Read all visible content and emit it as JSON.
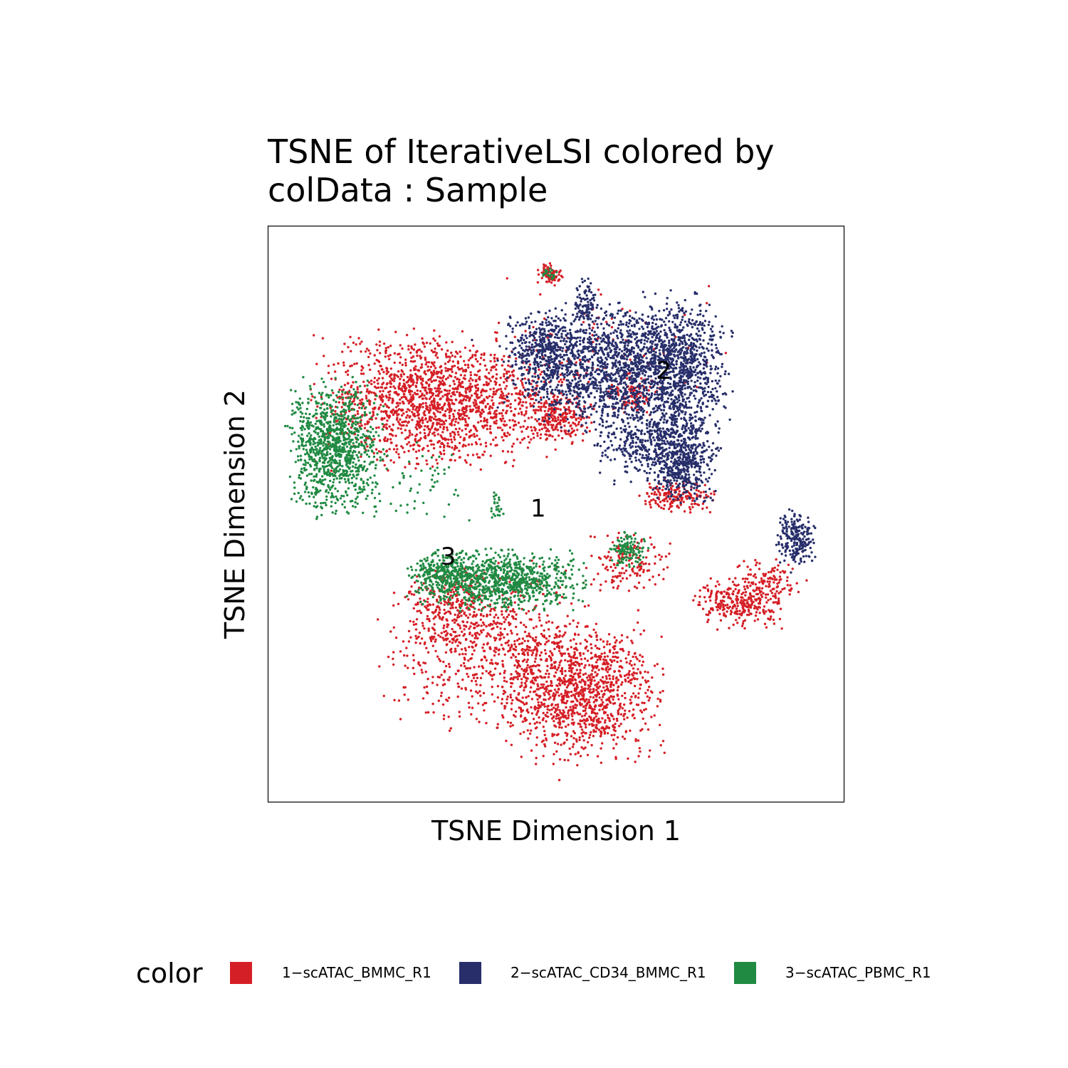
{
  "chart_data": {
    "type": "scatter",
    "title_lines": [
      "TSNE of IterativeLSI  colored by",
      "colData :  Sample"
    ],
    "xlabel": "TSNE Dimension 1",
    "ylabel": "TSNE Dimension 2",
    "xlim": [
      -48,
      48
    ],
    "ylim": [
      -48,
      48
    ],
    "grid": false,
    "legend": {
      "title": "color",
      "position": "bottom",
      "entries": [
        {
          "label": "1−scATAC_BMMC_R1",
          "color": "#D51F26"
        },
        {
          "label": "2−scATAC_CD34_BMMC_R1",
          "color": "#272E6A"
        },
        {
          "label": "3−scATAC_PBMC_R1",
          "color": "#208A42"
        }
      ]
    },
    "cluster_labels": [
      {
        "text": "2",
        "x": 18,
        "y": 24
      },
      {
        "text": "1",
        "x": -3,
        "y": 1
      },
      {
        "text": "3",
        "x": -18,
        "y": -7
      }
    ],
    "series": [
      {
        "name": "1−scATAC_BMMC_R1",
        "color": "#D51F26",
        "clusters": [
          {
            "cx": -22,
            "cy": 19,
            "sx": 8,
            "sy": 5,
            "n": 1400
          },
          {
            "cx": -8,
            "cy": 18,
            "sx": 6,
            "sy": 4,
            "n": 300
          },
          {
            "cx": 0,
            "cy": 16,
            "sx": 2.5,
            "sy": 1.8,
            "n": 220
          },
          {
            "cx": 13,
            "cy": 20,
            "sx": 1.8,
            "sy": 1.5,
            "n": 100
          },
          {
            "cx": 20,
            "cy": 3,
            "sx": 2.8,
            "sy": 1.2,
            "n": 170
          },
          {
            "cx": 4,
            "cy": -30,
            "sx": 6,
            "sy": 5,
            "n": 1100
          },
          {
            "cx": -11,
            "cy": -22,
            "sx": 8,
            "sy": 6,
            "n": 700
          },
          {
            "cx": -18,
            "cy": -15,
            "sx": 3,
            "sy": 3,
            "n": 200
          },
          {
            "cx": 12,
            "cy": -8,
            "sx": 3,
            "sy": 2.2,
            "n": 150
          },
          {
            "cx": 31,
            "cy": -15,
            "sx": 3.5,
            "sy": 1.8,
            "n": 300
          },
          {
            "cx": 36,
            "cy": -11,
            "sx": 2.5,
            "sy": 1.5,
            "n": 100
          },
          {
            "cx": -1,
            "cy": 40,
            "sx": 0.9,
            "sy": 0.8,
            "n": 90
          },
          {
            "cx": 8,
            "cy": 28,
            "sx": 9,
            "sy": 5,
            "n": 90
          },
          {
            "cx": 11,
            "cy": -23,
            "sx": 2,
            "sy": 3,
            "n": 40
          }
        ]
      },
      {
        "name": "2−scATAC_CD34_BMMC_R1",
        "color": "#272E6A",
        "clusters": [
          {
            "cx": 9,
            "cy": 26,
            "sx": 8,
            "sy": 4,
            "n": 1300
          },
          {
            "cx": 20,
            "cy": 23,
            "sx": 4,
            "sy": 6,
            "n": 900
          },
          {
            "cx": 21,
            "cy": 9,
            "sx": 2.5,
            "sy": 3,
            "n": 500
          },
          {
            "cx": 14,
            "cy": 12,
            "sx": 3.5,
            "sy": 3,
            "n": 300
          },
          {
            "cx": -2,
            "cy": 27,
            "sx": 2.5,
            "sy": 3,
            "n": 300
          },
          {
            "cx": 5,
            "cy": 35,
            "sx": 0.8,
            "sy": 2.2,
            "n": 80
          },
          {
            "cx": 40,
            "cy": -4,
            "sx": 1.4,
            "sy": 2,
            "n": 230
          },
          {
            "cx": 6,
            "cy": 20,
            "sx": 4,
            "sy": 3,
            "n": 200
          }
        ]
      },
      {
        "name": "3−scATAC_PBMC_R1",
        "color": "#208A42",
        "clusters": [
          {
            "cx": -37,
            "cy": 11,
            "sx": 3.5,
            "sy": 5,
            "n": 1000
          },
          {
            "cx": -9,
            "cy": -11,
            "sx": 6,
            "sy": 2.2,
            "n": 900
          },
          {
            "cx": -19,
            "cy": -10,
            "sx": 2.5,
            "sy": 1.8,
            "n": 250
          },
          {
            "cx": 12,
            "cy": -6,
            "sx": 1.5,
            "sy": 1.3,
            "n": 120
          },
          {
            "cx": -1,
            "cy": 40,
            "sx": 0.6,
            "sy": 0.5,
            "n": 20
          },
          {
            "cx": -10,
            "cy": 1,
            "sx": 0.6,
            "sy": 1.2,
            "n": 25
          },
          {
            "cx": -24,
            "cy": 5,
            "sx": 4,
            "sy": 3,
            "n": 60
          }
        ]
      }
    ]
  }
}
